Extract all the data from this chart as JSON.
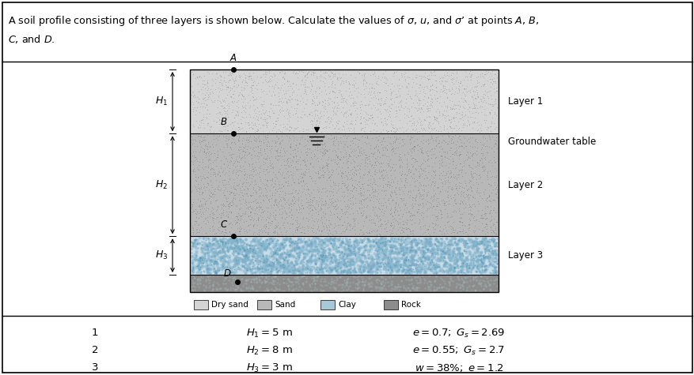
{
  "bg_color": "#ffffff",
  "layer1_color": "#d4d4d4",
  "layer2_color": "#b8b8b8",
  "layer3_color": "#a8c8d8",
  "rock_color": "#8c8c8c",
  "title_line1": "A soil profile consisting of three layers is shown below. Calculate the values of $\\sigma$, $u$, and $\\sigma$’ at points $A$, $B$,",
  "title_line2": "$C$, and $D$.",
  "layer_labels": [
    "Layer 1",
    "Layer 2",
    "Layer 3"
  ],
  "gwt_label": "Groundwater table",
  "legend_labels": [
    "Dry sand",
    "Sand",
    "Clay",
    "Rock"
  ],
  "legend_colors": [
    "#d4d4d4",
    "#b8b8b8",
    "#a8c8d8",
    "#8c8c8c"
  ],
  "table_rows": [
    [
      "1",
      "$H_1 = 5$ m",
      "$e = 0.7;\\;G_s = 2.69$"
    ],
    [
      "2",
      "$H_2 = 8$ m",
      "$e = 0.55;\\;G_s = 2.7$"
    ],
    [
      "3",
      "$H_3 = 3$ m",
      "$w = 38\\%;\\;e = 1.2$"
    ]
  ]
}
